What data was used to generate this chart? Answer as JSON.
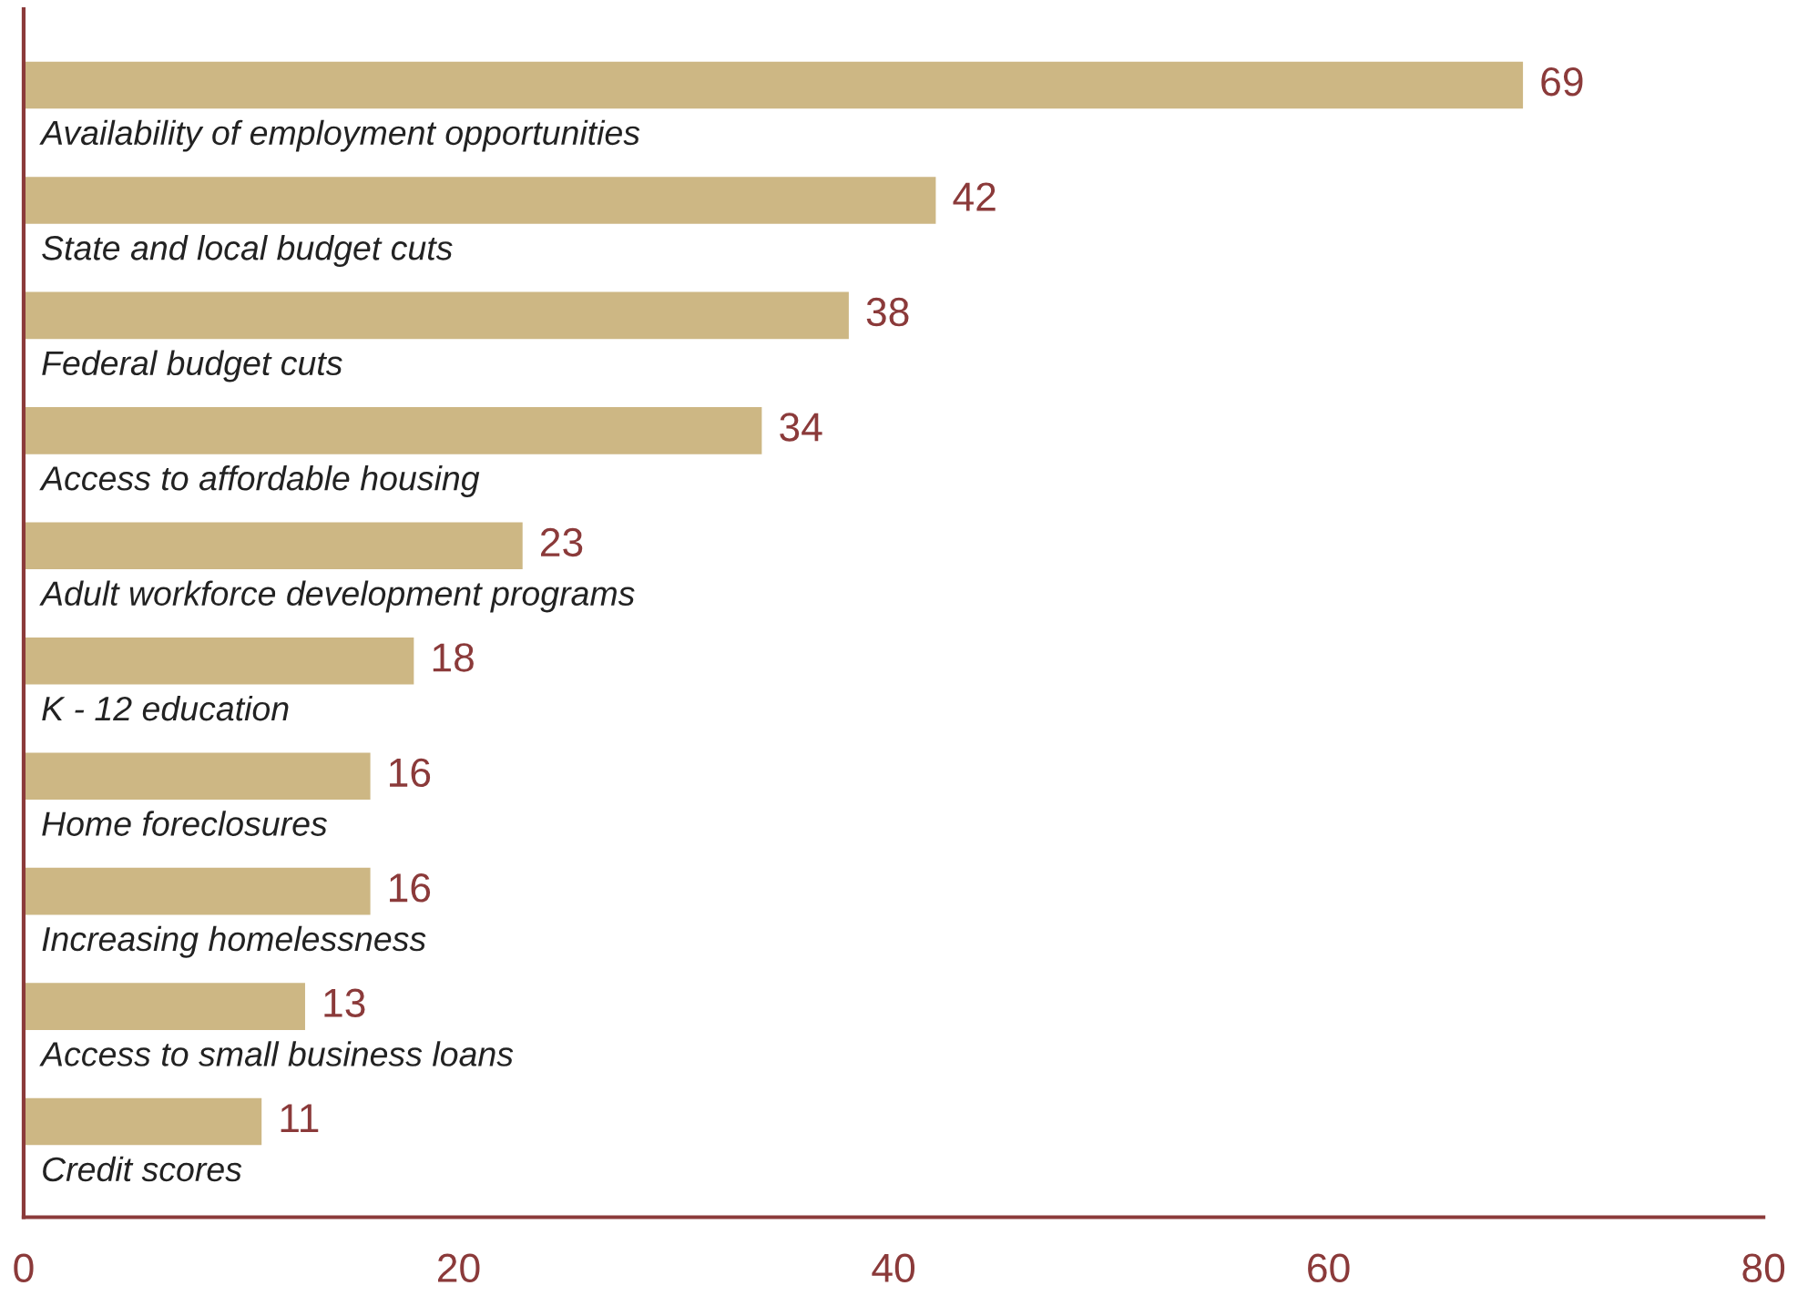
{
  "chart_data": {
    "type": "bar",
    "orientation": "horizontal",
    "categories": [
      "Availability of employment opportunities",
      "State and local budget cuts",
      "Federal budget cuts",
      "Access to affordable housing",
      "Adult workforce development programs",
      "K - 12 education",
      "Home foreclosures",
      "Increasing homelessness",
      "Access to small business loans",
      "Credit scores"
    ],
    "values": [
      69,
      42,
      38,
      34,
      23,
      18,
      16,
      16,
      13,
      11
    ],
    "color": "#cdb784",
    "xlim": [
      0,
      80
    ],
    "xticks": [
      0,
      20,
      40,
      60,
      80
    ],
    "data_labels": true,
    "grid": false,
    "legend": false
  }
}
